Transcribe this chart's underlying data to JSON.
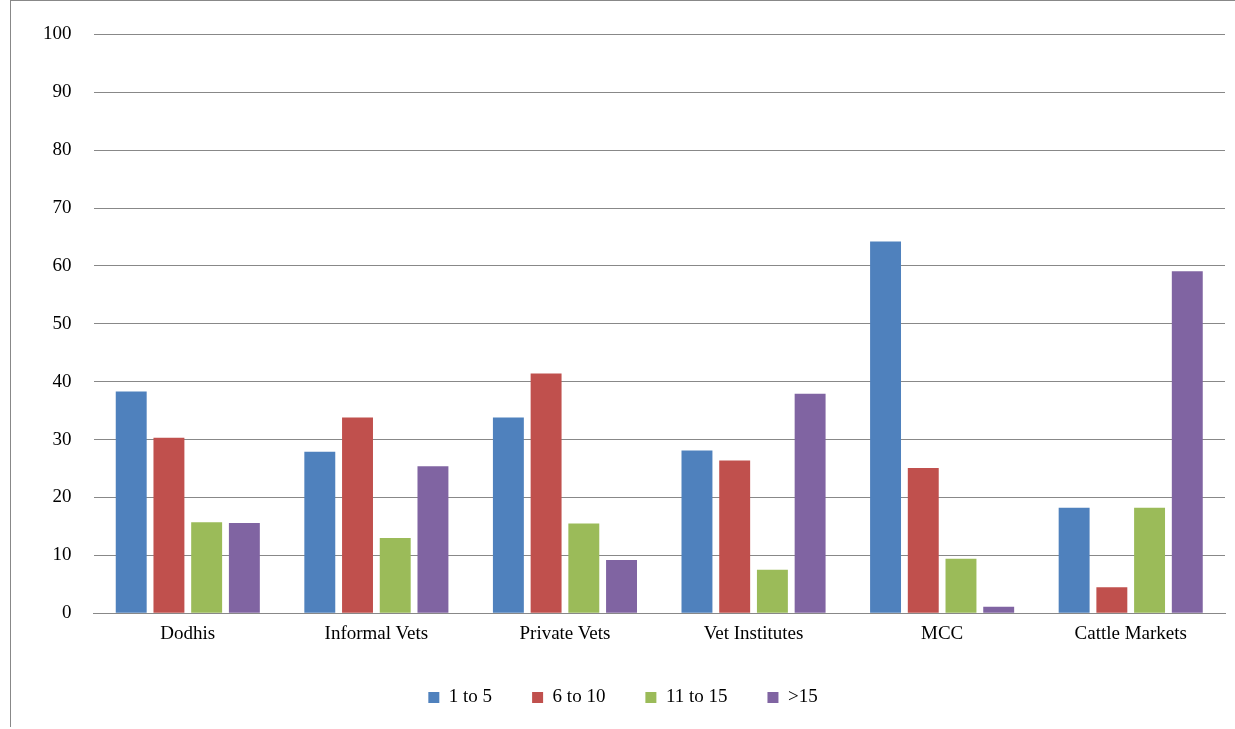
{
  "chart_data": {
    "type": "bar",
    "categories": [
      "Dodhis",
      "Informal Vets",
      "Private Vets",
      "Vet Institutes",
      "MCC",
      "Cattle Markets"
    ],
    "series": [
      {
        "name": "1 to 5",
        "color": "#4f81bd",
        "values": [
          38.3,
          27.9,
          33.8,
          28.1,
          64.2,
          18.2
        ]
      },
      {
        "name": "6 to 10",
        "color": "#c0504d",
        "values": [
          30.3,
          33.8,
          41.4,
          26.4,
          25.1,
          4.5
        ]
      },
      {
        "name": "11 to 15",
        "color": "#9bbb59",
        "values": [
          15.7,
          13,
          15.5,
          7.5,
          9.4,
          18.2
        ]
      },
      {
        "name": ">15",
        "color": "#8064a2",
        "values": [
          15.6,
          25.4,
          9.2,
          37.9,
          1.1,
          59.1
        ]
      }
    ],
    "ylim": [
      0,
      100
    ],
    "yticks": [
      0,
      10,
      20,
      30,
      40,
      50,
      60,
      70,
      80,
      90,
      100
    ],
    "grid": "y",
    "legend": "bottom"
  }
}
